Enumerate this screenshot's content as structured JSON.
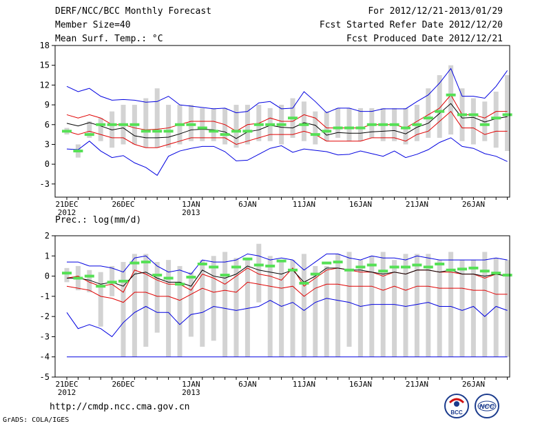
{
  "header": {
    "title": "DERF/NCC/BCC Monthly Forecast",
    "member_size": "Member Size=40",
    "variable": "Mean Surf. Temp.: °C",
    "period": "For 2012/12/21-2013/01/29",
    "fcst_started": "Fcst Started Refer Date 2012/12/20",
    "fcst_produced": "Fcst Produced Date 2012/12/21"
  },
  "footer": {
    "url": "http://cmdp.ncc.cma.gov.cn",
    "grads": "GrADS: COLA/IGES"
  },
  "logos": {
    "bcc": "BCC",
    "ncc": "NCC"
  },
  "colors": {
    "box": "#d3d3d3",
    "median": "#55e055",
    "mean": "#000000",
    "pct": "#e00000",
    "extreme": "#0000e0"
  },
  "chart_data": [
    {
      "type": "box-ensemble",
      "title": "Mean Surf. Temp.: °C",
      "ylim": [
        -5,
        18
      ],
      "yticks": [
        -3,
        0,
        3,
        6,
        9,
        12,
        15,
        18
      ],
      "xtick_labels": [
        {
          "day": 0,
          "label": "21DEC",
          "sub": "2012"
        },
        {
          "day": 5,
          "label": "26DEC",
          "sub": ""
        },
        {
          "day": 11,
          "label": "1JAN",
          "sub": "2013"
        },
        {
          "day": 16,
          "label": "6JAN",
          "sub": ""
        },
        {
          "day": 21,
          "label": "11JAN",
          "sub": ""
        },
        {
          "day": 26,
          "label": "16JAN",
          "sub": ""
        },
        {
          "day": 31,
          "label": "21JAN",
          "sub": ""
        },
        {
          "day": 36,
          "label": "26JAN",
          "sub": ""
        }
      ],
      "box_low": [
        4.5,
        1,
        4,
        3.5,
        2.5,
        3,
        3,
        2.5,
        2.5,
        2.5,
        3,
        3.5,
        3.5,
        3.5,
        3,
        2.5,
        3,
        3.5,
        3.5,
        3,
        4,
        3.5,
        3,
        3.5,
        4,
        3.5,
        3.5,
        4,
        3.5,
        3.5,
        3,
        3.5,
        4,
        4,
        4.5,
        3.5,
        3,
        3.5,
        2.5,
        2
      ],
      "box_high": [
        5.5,
        3,
        6.5,
        7,
        8,
        9,
        9,
        10,
        11.5,
        9,
        9,
        9,
        8.5,
        8.5,
        8.5,
        9,
        9,
        9,
        8.5,
        9,
        10,
        9.5,
        8,
        8,
        8.5,
        8.5,
        8.5,
        8.5,
        8.5,
        8.5,
        8.5,
        9,
        11.5,
        13.5,
        15,
        11.5,
        10,
        9.5,
        11,
        13.5
      ],
      "median": [
        5,
        2,
        4.5,
        6,
        6,
        6,
        6,
        5,
        5,
        5,
        6,
        6,
        5.5,
        5,
        4.5,
        5,
        5,
        6,
        6,
        6,
        7,
        6,
        4.5,
        5,
        5.5,
        5.5,
        5.5,
        6,
        6,
        6,
        5.5,
        6,
        7,
        8,
        10.5,
        7.5,
        7.5,
        6,
        7,
        7.5
      ],
      "mean": [
        6.2,
        5.8,
        6.3,
        5.8,
        5.2,
        5.5,
        4.3,
        4,
        4,
        4.1,
        4.6,
        5.2,
        5.3,
        5.2,
        4.9,
        3.9,
        4.9,
        5.2,
        5.9,
        5.6,
        5.5,
        6.3,
        5.9,
        4.4,
        4.8,
        4.7,
        4.7,
        4.9,
        5,
        5.1,
        4.6,
        5.6,
        6.2,
        7.7,
        9.2,
        7,
        7.1,
        6.4,
        6.9,
        7.2
      ],
      "p_upper": [
        7.5,
        7,
        7.5,
        7,
        6,
        6,
        5.5,
        5.2,
        5.3,
        5.5,
        6,
        6.5,
        6.5,
        6.5,
        6,
        5,
        6,
        6.2,
        7,
        6.5,
        6.5,
        7.5,
        7,
        5.5,
        5.5,
        5.5,
        5.5,
        6,
        6,
        6,
        5.5,
        6.5,
        7.5,
        8.5,
        10.5,
        7.5,
        7.5,
        7,
        8,
        8
      ],
      "p_lower": [
        5,
        4.5,
        5,
        4.5,
        4,
        4,
        3,
        2.5,
        2.5,
        3,
        3.5,
        4,
        4,
        4,
        4,
        3,
        3.5,
        4,
        4.5,
        4.5,
        4.5,
        5,
        4.5,
        3.5,
        3.5,
        3.5,
        3.5,
        4,
        4,
        4,
        3.5,
        4.5,
        5,
        6.5,
        8,
        5.5,
        5.5,
        4.5,
        5,
        5
      ],
      "max": [
        11.8,
        11,
        11.5,
        10.3,
        9.7,
        9.8,
        9.7,
        9.4,
        9.5,
        10.3,
        9,
        8.8,
        8.6,
        8.4,
        8.5,
        7.8,
        8,
        9.3,
        9.5,
        8.4,
        8.5,
        11,
        9.5,
        7.8,
        8.5,
        8.5,
        8,
        8,
        8.4,
        8.4,
        8.4,
        9.5,
        10.5,
        12.3,
        14.5,
        10.3,
        10.3,
        10,
        11.8,
        14.2
      ],
      "min": [
        2.3,
        2.2,
        3.5,
        2,
        1,
        1.3,
        0.2,
        -0.5,
        -1.7,
        1.2,
        2,
        2.4,
        2.7,
        2.7,
        1.9,
        0.5,
        0.6,
        1.5,
        2.4,
        2.8,
        1.8,
        2.3,
        2.1,
        1.9,
        1.4,
        1.5,
        2,
        1.6,
        1.2,
        2,
        1,
        1.5,
        2.2,
        3.3,
        4,
        2.7,
        2.4,
        1.6,
        1.2,
        0.4
      ]
    },
    {
      "type": "box-ensemble",
      "title": "Prec.: log(mm/d)",
      "ylim": [
        -5,
        2
      ],
      "yticks": [
        -5,
        -4,
        -3,
        -2,
        -1,
        0,
        1,
        2
      ],
      "xtick_labels": [
        {
          "day": 0,
          "label": "21DEC",
          "sub": "2012"
        },
        {
          "day": 5,
          "label": "26DEC",
          "sub": ""
        },
        {
          "day": 11,
          "label": "1JAN",
          "sub": "2013"
        },
        {
          "day": 16,
          "label": "6JAN",
          "sub": ""
        },
        {
          "day": 21,
          "label": "11JAN",
          "sub": ""
        },
        {
          "day": 26,
          "label": "16JAN",
          "sub": ""
        },
        {
          "day": 31,
          "label": "21JAN",
          "sub": ""
        },
        {
          "day": 36,
          "label": "26JAN",
          "sub": ""
        }
      ],
      "box_low": [
        -0.3,
        -0.7,
        -0.8,
        -2.5,
        -1,
        -4,
        -4,
        -3.5,
        -2.8,
        -4,
        -4,
        -3,
        -3.5,
        -3.2,
        -4,
        -4,
        -4,
        -1.3,
        -4,
        -4,
        -4,
        -4,
        -4,
        -4,
        -4,
        -3.5,
        -4,
        -4,
        -4,
        -4,
        -4,
        -4,
        -4,
        -4,
        -4,
        -4,
        -4,
        -4,
        -4,
        -4
      ],
      "box_high": [
        0.4,
        0.5,
        0.3,
        0.2,
        0.5,
        0.7,
        1.1,
        1.1,
        0.7,
        0.8,
        0.5,
        0.2,
        0.8,
        1,
        1.2,
        0.9,
        0.9,
        1.6,
        1,
        0.8,
        0.8,
        1.1,
        0.5,
        0.5,
        1.1,
        1.2,
        0.8,
        1,
        1.2,
        0.8,
        1.1,
        1.1,
        1.1,
        0.8,
        1.2,
        0.8,
        0.8,
        1.2,
        0.9,
        0.8
      ],
      "median": [
        0.15,
        -0.1,
        0,
        -0.5,
        -0.3,
        -0.25,
        0.65,
        0.7,
        0.05,
        -0.1,
        -0.4,
        -0.05,
        0.6,
        0.45,
        0.05,
        0.45,
        0.85,
        0.55,
        0.5,
        0.75,
        0.3,
        -0.35,
        0.1,
        0.65,
        0.7,
        0.3,
        0.45,
        0.55,
        0.25,
        0.45,
        0.45,
        0.55,
        0.45,
        0.6,
        0.3,
        0.35,
        0.4,
        0.25,
        0.15,
        0.05
      ],
      "mean": [
        -0.1,
        -0.1,
        -0.2,
        -0.4,
        -0.3,
        -0.5,
        0.1,
        0.2,
        -0.1,
        -0.3,
        -0.3,
        -0.5,
        0.3,
        0,
        -0.1,
        0.1,
        0.5,
        0.3,
        0.2,
        0.1,
        0.3,
        -0.3,
        0,
        0.4,
        0.4,
        0.3,
        0.3,
        0.2,
        0.1,
        0.2,
        0.1,
        0.3,
        0.3,
        0.2,
        0.3,
        0.1,
        0.1,
        0,
        0.1,
        0
      ],
      "p_upper": [
        -0.1,
        0,
        -0.3,
        -0.5,
        -0.4,
        -0.8,
        0.3,
        0.1,
        -0.2,
        -0.4,
        -0.4,
        -0.7,
        0.1,
        -0.1,
        -0.4,
        0,
        0.4,
        0.1,
        0,
        -0.2,
        0.4,
        -0.5,
        -0.1,
        0.3,
        0.4,
        0.3,
        0.2,
        0.2,
        0,
        0.2,
        0.1,
        0.3,
        0.3,
        0.2,
        0.2,
        0.1,
        0.1,
        -0.1,
        0.1,
        0
      ],
      "p_lower": [
        -0.5,
        -0.6,
        -0.7,
        -1,
        -1.1,
        -1.3,
        -0.8,
        -0.8,
        -1,
        -1,
        -1.2,
        -0.9,
        -0.6,
        -0.8,
        -0.7,
        -0.8,
        -0.3,
        -0.4,
        -0.5,
        -0.6,
        -0.5,
        -1,
        -0.6,
        -0.4,
        -0.4,
        -0.5,
        -0.5,
        -0.5,
        -0.7,
        -0.5,
        -0.7,
        -0.5,
        -0.5,
        -0.6,
        -0.6,
        -0.6,
        -0.7,
        -0.7,
        -0.9,
        -0.9
      ],
      "max": [
        0.7,
        0.7,
        0.5,
        0.5,
        0.4,
        0.2,
        0.9,
        1,
        0.5,
        0.2,
        0.3,
        0.1,
        0.8,
        0.7,
        0.7,
        0.8,
        1.1,
        1,
        0.8,
        0.9,
        0.8,
        0.3,
        0.7,
        1.1,
        1.1,
        0.9,
        0.8,
        1,
        0.9,
        0.9,
        0.8,
        1,
        0.9,
        0.8,
        0.8,
        0.8,
        0.8,
        0.8,
        0.9,
        0.8
      ],
      "min": [
        -1.8,
        -2.6,
        -2.4,
        -2.6,
        -3,
        -2.3,
        -1.8,
        -1.5,
        -1.8,
        -1.8,
        -2.4,
        -1.9,
        -1.8,
        -1.5,
        -1.6,
        -1.7,
        -1.6,
        -1.5,
        -1.2,
        -1.5,
        -1.3,
        -1.7,
        -1.3,
        -1.1,
        -1.2,
        -1.3,
        -1.5,
        -1.4,
        -1.4,
        -1.4,
        -1.5,
        -1.4,
        -1.3,
        -1.5,
        -1.5,
        -1.7,
        -1.5,
        -2,
        -1.5,
        -1.7
      ],
      "floor": [
        -4,
        -4,
        -4,
        -4,
        -4,
        -4,
        -4,
        -4,
        -4,
        -4,
        -4,
        -4,
        -4,
        -4,
        -4,
        -4,
        -4,
        -4,
        -4,
        -4,
        -4,
        -4,
        -4,
        -4,
        -4,
        -4,
        -4,
        -4,
        -4,
        -4,
        -4,
        -4,
        -4,
        -4,
        -4,
        -4,
        -4,
        -4,
        -4,
        -4
      ]
    }
  ]
}
